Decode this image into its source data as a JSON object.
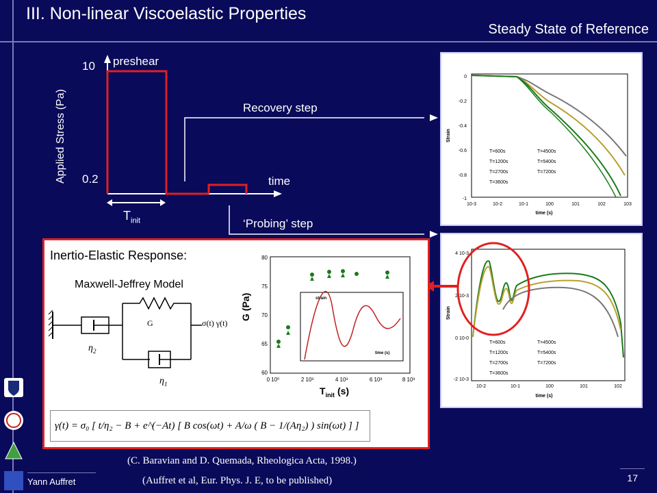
{
  "slide": {
    "title": "III. Non-linear Viscoelastic  Properties",
    "subtitle": "Steady State of Reference",
    "page_number": "17",
    "author": "Yann Auffret"
  },
  "stress_diagram": {
    "y_axis_label": "Applied Stress (Pa)",
    "y_high": "10",
    "y_low": "0.2",
    "preshear_label": "preshear",
    "time_label": "time",
    "t_init_label": "T",
    "t_init_sub": "init",
    "recovery_label": "Recovery step",
    "probing_label": "‘Probing’ step"
  },
  "recovery_plot": {
    "y_label": "Strain",
    "x_label": "time (s)",
    "y_ticks": [
      "0",
      "-0.2",
      "-0.4",
      "-0.6",
      "-0.8",
      "-1"
    ],
    "x_ticks": [
      "10-3",
      "10-2",
      "10-1",
      "100",
      "101",
      "102",
      "103"
    ],
    "legend": [
      "T=600s",
      "T=1200s",
      "T=2700s",
      "T=3600s",
      "T=4500s",
      "T=5400s",
      "T=7200s"
    ]
  },
  "probing_plot": {
    "y_label": "Strain",
    "x_label": "time (s)",
    "y_ticks": [
      "4 10-3",
      "2 10-3",
      "0 10-0",
      "-2 10-3"
    ],
    "x_ticks": [
      "10-2",
      "10-1",
      "100",
      "101",
      "102"
    ],
    "legend": [
      "T=600s",
      "T=1200s",
      "T=2700s",
      "T=3600s",
      "T=4500s",
      "T=5400s",
      "T=7200s"
    ]
  },
  "inertio": {
    "heading": "Inertio-Elastic Response:",
    "model_label": "Maxwell-Jeffrey Model",
    "spring_label": "G",
    "eta1": "η",
    "eta1_sub": "1",
    "eta2": "η",
    "eta2_sub": "2",
    "rhs": "σ(t)  γ(t)",
    "g_plot_ylabel": "G (Pa)",
    "g_plot_xlabel": "T",
    "g_plot_xlabel_sub": "init",
    "g_plot_xlabel_unit": " (s)",
    "g_y_ticks": [
      "80",
      "75",
      "70",
      "65",
      "60"
    ],
    "g_x_ticks": [
      "0 10⁰",
      "2 10³",
      "4 10³",
      "6 10³",
      "8 10³"
    ],
    "inset_y_label": "strain",
    "inset_x_label": "time (s)",
    "equation": "γ(t) = σ₀ [ t/η₂ − B + e^(−At) [ B cos(ωt) + A/ω ( B − 1/(Aη₂) ) sin(ωt) ] ]"
  },
  "references": {
    "ref1": "(C. Baravian and D. Quemada,  Rheologica Acta, 1998.)",
    "ref2": "(Auffret et al, Eur. Phys. J. E, to be published)"
  },
  "colors": {
    "background": "#0a0a5a",
    "accent_red": "#e02020",
    "series_green": "#1a7a1a"
  }
}
